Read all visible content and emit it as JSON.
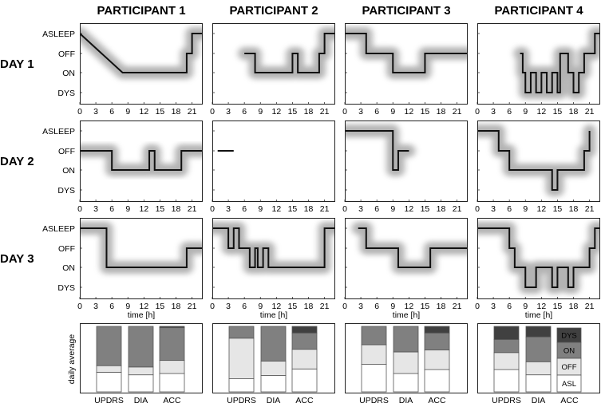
{
  "participants": [
    "PARTICIPANT 1",
    "PARTICIPANT 2",
    "PARTICIPANT 3",
    "PARTICIPANT 4"
  ],
  "days": [
    "DAY 1",
    "DAY 2",
    "DAY 3"
  ],
  "state_labels": [
    "ASLEEP",
    "OFF",
    "ON",
    "DYS"
  ],
  "x_ticks": [
    "0",
    "3",
    "6",
    "9",
    "12",
    "15",
    "18",
    "21"
  ],
  "x_label": "time [h]",
  "bar_y_label": "daily average",
  "bar_categories": [
    "UPDRS",
    "DIA",
    "ACC"
  ],
  "legend_labels": [
    "DYS",
    "ON",
    "OFF",
    "ASL"
  ],
  "colors": {
    "ASL": "#ffffff",
    "OFF": "#e6e6e6",
    "ON": "#808080",
    "DYS": "#404040",
    "trace": "#111111"
  },
  "chart_data": {
    "type": "line",
    "x_range": [
      0,
      23
    ],
    "y_states": [
      "DYS",
      "ON",
      "OFF",
      "ASLEEP"
    ],
    "state_traces": [
      [
        [
          [
            0,
            3
          ],
          [
            8,
            1
          ],
          [
            20,
            1
          ],
          [
            20,
            2
          ],
          [
            21,
            2
          ],
          [
            21,
            3
          ],
          [
            23,
            3
          ]
        ],
        [
          [
            0,
            2
          ],
          [
            6,
            2
          ],
          [
            6,
            1
          ],
          [
            13,
            1
          ],
          [
            13,
            2
          ],
          [
            14,
            2
          ],
          [
            14,
            1
          ],
          [
            19,
            1
          ],
          [
            19,
            2
          ],
          [
            23,
            2
          ]
        ],
        [
          [
            0,
            3
          ],
          [
            5,
            3
          ],
          [
            5,
            1
          ],
          [
            20,
            1
          ],
          [
            20,
            2
          ],
          [
            23,
            2
          ]
        ]
      ],
      [
        [
          [
            6,
            2
          ],
          [
            8,
            2
          ],
          [
            8,
            1
          ],
          [
            15,
            1
          ],
          [
            15,
            2
          ],
          [
            16,
            2
          ],
          [
            16,
            1
          ],
          [
            20,
            1
          ],
          [
            20,
            2
          ],
          [
            21,
            2
          ],
          [
            21,
            3
          ],
          [
            23,
            3
          ]
        ],
        [
          [
            1,
            2
          ],
          [
            4,
            2
          ],
          [
            4,
            1.9
          ],
          [
            6,
            1.9
          ],
          [
            6,
            1
          ],
          [
            7,
            1
          ],
          [
            7,
            2
          ],
          [
            8,
            2
          ],
          [
            8,
            1
          ],
          [
            15,
            1
          ]
        ],
        [
          [
            0,
            3
          ],
          [
            3,
            3
          ],
          [
            3,
            2
          ],
          [
            4,
            2
          ],
          [
            4,
            3
          ],
          [
            5,
            3
          ],
          [
            5,
            2
          ],
          [
            7,
            2
          ],
          [
            7,
            1
          ],
          [
            8,
            1
          ],
          [
            8,
            2
          ],
          [
            8.5,
            2
          ],
          [
            8.5,
            1
          ],
          [
            9.5,
            1
          ],
          [
            9.5,
            2
          ],
          [
            10.5,
            2
          ],
          [
            10.5,
            1
          ],
          [
            14,
            1
          ],
          [
            14,
            1
          ],
          [
            21,
            1
          ],
          [
            21,
            3
          ],
          [
            23,
            3
          ]
        ]
      ],
      [
        [
          [
            0,
            3
          ],
          [
            4,
            3
          ],
          [
            4,
            2
          ],
          [
            9,
            2
          ],
          [
            9,
            1
          ],
          [
            15,
            1
          ],
          [
            15,
            2
          ],
          [
            23,
            2
          ]
        ],
        [
          [
            0,
            3
          ],
          [
            9,
            3
          ],
          [
            9,
            1
          ],
          [
            10,
            1
          ],
          [
            10,
            2
          ],
          [
            12,
            2
          ]
        ],
        [
          [
            2.5,
            3
          ],
          [
            4,
            3
          ],
          [
            4,
            2
          ],
          [
            10,
            2
          ],
          [
            10,
            1
          ],
          [
            16,
            1
          ],
          [
            16,
            2
          ],
          [
            23,
            2
          ]
        ]
      ],
      [
        [
          [
            8,
            2
          ],
          [
            8.5,
            2
          ],
          [
            8.5,
            1
          ],
          [
            9,
            1
          ],
          [
            9,
            0
          ],
          [
            10,
            0
          ],
          [
            10,
            1
          ],
          [
            11,
            1
          ],
          [
            11,
            0
          ],
          [
            12,
            0
          ],
          [
            12,
            1
          ],
          [
            13,
            1
          ],
          [
            13,
            0
          ],
          [
            14,
            0
          ],
          [
            14,
            1
          ],
          [
            15,
            1
          ],
          [
            15,
            0
          ],
          [
            15.5,
            0
          ],
          [
            15.5,
            2
          ],
          [
            17,
            2
          ],
          [
            17,
            1
          ],
          [
            18,
            1
          ],
          [
            18,
            0
          ],
          [
            19,
            0
          ],
          [
            19,
            1
          ],
          [
            20,
            1
          ],
          [
            20,
            2
          ],
          [
            22,
            2
          ],
          [
            22,
            3
          ],
          [
            23,
            3
          ]
        ],
        [
          [
            0,
            3
          ],
          [
            4,
            3
          ],
          [
            4,
            2
          ],
          [
            6,
            2
          ],
          [
            6,
            1
          ],
          [
            14,
            1
          ],
          [
            14,
            0
          ],
          [
            15,
            0
          ],
          [
            15,
            1
          ],
          [
            20,
            1
          ],
          [
            20,
            2
          ],
          [
            21,
            2
          ],
          [
            21,
            3
          ]
        ],
        [
          [
            0,
            3
          ],
          [
            6,
            3
          ],
          [
            6,
            2
          ],
          [
            7,
            2
          ],
          [
            7,
            1
          ],
          [
            9,
            1
          ],
          [
            9,
            0
          ],
          [
            11,
            0
          ],
          [
            11,
            1
          ],
          [
            14,
            1
          ],
          [
            14,
            0
          ],
          [
            15,
            0
          ],
          [
            15,
            1
          ],
          [
            17,
            1
          ],
          [
            17,
            0
          ],
          [
            18,
            0
          ],
          [
            18,
            1
          ],
          [
            21,
            1
          ],
          [
            21,
            2
          ],
          [
            22,
            2
          ],
          [
            22,
            3
          ],
          [
            23,
            3
          ]
        ]
      ]
    ],
    "daily_average": [
      {
        "UPDRS": {
          "ASL": 0.3,
          "OFF": 0.1,
          "ON": 0.6,
          "DYS": 0.0
        },
        "DIA": {
          "ASL": 0.26,
          "OFF": 0.12,
          "ON": 0.62,
          "DYS": 0.0
        },
        "ACC": {
          "ASL": 0.28,
          "OFF": 0.2,
          "ON": 0.5,
          "DYS": 0.02
        }
      },
      {
        "UPDRS": {
          "ASL": 0.2,
          "OFF": 0.62,
          "ON": 0.18,
          "DYS": 0.0
        },
        "DIA": {
          "ASL": 0.25,
          "OFF": 0.22,
          "ON": 0.53,
          "DYS": 0.0
        },
        "ACC": {
          "ASL": 0.35,
          "OFF": 0.3,
          "ON": 0.25,
          "DYS": 0.1
        }
      },
      {
        "UPDRS": {
          "ASL": 0.42,
          "OFF": 0.3,
          "ON": 0.28,
          "DYS": 0.0
        },
        "DIA": {
          "ASL": 0.28,
          "OFF": 0.33,
          "ON": 0.39,
          "DYS": 0.0
        },
        "ACC": {
          "ASL": 0.34,
          "OFF": 0.3,
          "ON": 0.26,
          "DYS": 0.1
        }
      },
      {
        "UPDRS": {
          "ASL": 0.34,
          "OFF": 0.26,
          "ON": 0.2,
          "DYS": 0.2
        },
        "DIA": {
          "ASL": 0.26,
          "OFF": 0.2,
          "ON": 0.38,
          "DYS": 0.16
        },
        "ACC": {
          "ASL": 0.0,
          "OFF": 0.0,
          "ON": 0.0,
          "DYS": 0.0
        }
      }
    ]
  }
}
